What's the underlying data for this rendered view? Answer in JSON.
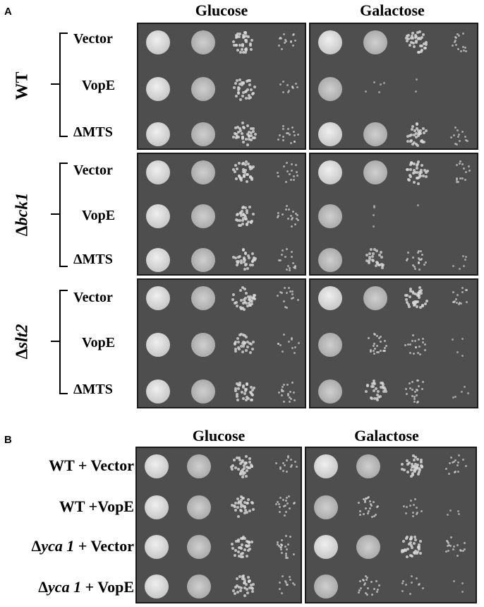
{
  "panel_a": {
    "letter": "A",
    "columns": [
      "Glucose",
      "Galactose"
    ],
    "groups": [
      {
        "strain_prefix": "",
        "strain_name": "WT",
        "rows": [
          "Vector",
          "VopE",
          "ΔMTS"
        ]
      },
      {
        "strain_prefix": "Δ",
        "strain_name": "bck1",
        "rows": [
          "Vector",
          "VopE",
          "ΔMTS"
        ]
      },
      {
        "strain_prefix": "Δ",
        "strain_name": "slt2",
        "rows": [
          "Vector",
          "VopE",
          "ΔMTS"
        ]
      }
    ]
  },
  "panel_b": {
    "letter": "B",
    "columns": [
      "Glucose",
      "Galactose"
    ],
    "rows": [
      {
        "prefix": "",
        "name": "WT",
        "suffix": " + Vector"
      },
      {
        "prefix": "",
        "name": "WT",
        "suffix": " +VopE"
      },
      {
        "prefix": "Δ",
        "name": "yca 1",
        "suffix": " + Vector"
      },
      {
        "prefix": "Δ",
        "name": "yca 1",
        "suffix": " + VopE"
      }
    ]
  },
  "colors": {
    "plate": "#4e4e4e",
    "colony": "#d9d9d9"
  }
}
